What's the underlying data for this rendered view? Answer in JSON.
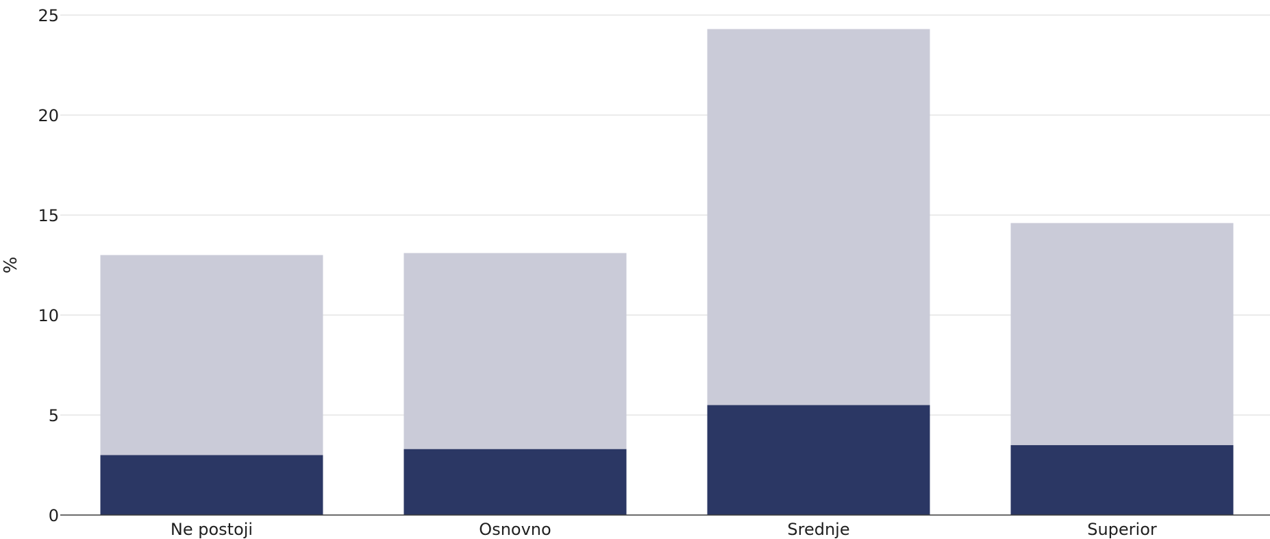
{
  "chart_data": {
    "type": "bar",
    "stacked": true,
    "categories": [
      "Ne postoji",
      "Osnovno",
      "Srednje",
      "Superior"
    ],
    "series": [
      {
        "values": [
          3.0,
          3.3,
          5.5,
          3.5
        ],
        "color": "#2b3764"
      },
      {
        "values": [
          10.0,
          9.8,
          18.8,
          11.1
        ],
        "color": "#cacbd8"
      }
    ],
    "totals": [
      13.0,
      13.1,
      24.3,
      14.6
    ],
    "title": "",
    "xlabel": "",
    "ylabel": "%",
    "ylim": [
      0,
      25
    ],
    "yticks": [
      0,
      5,
      10,
      15,
      20,
      25
    ],
    "grid": true
  }
}
